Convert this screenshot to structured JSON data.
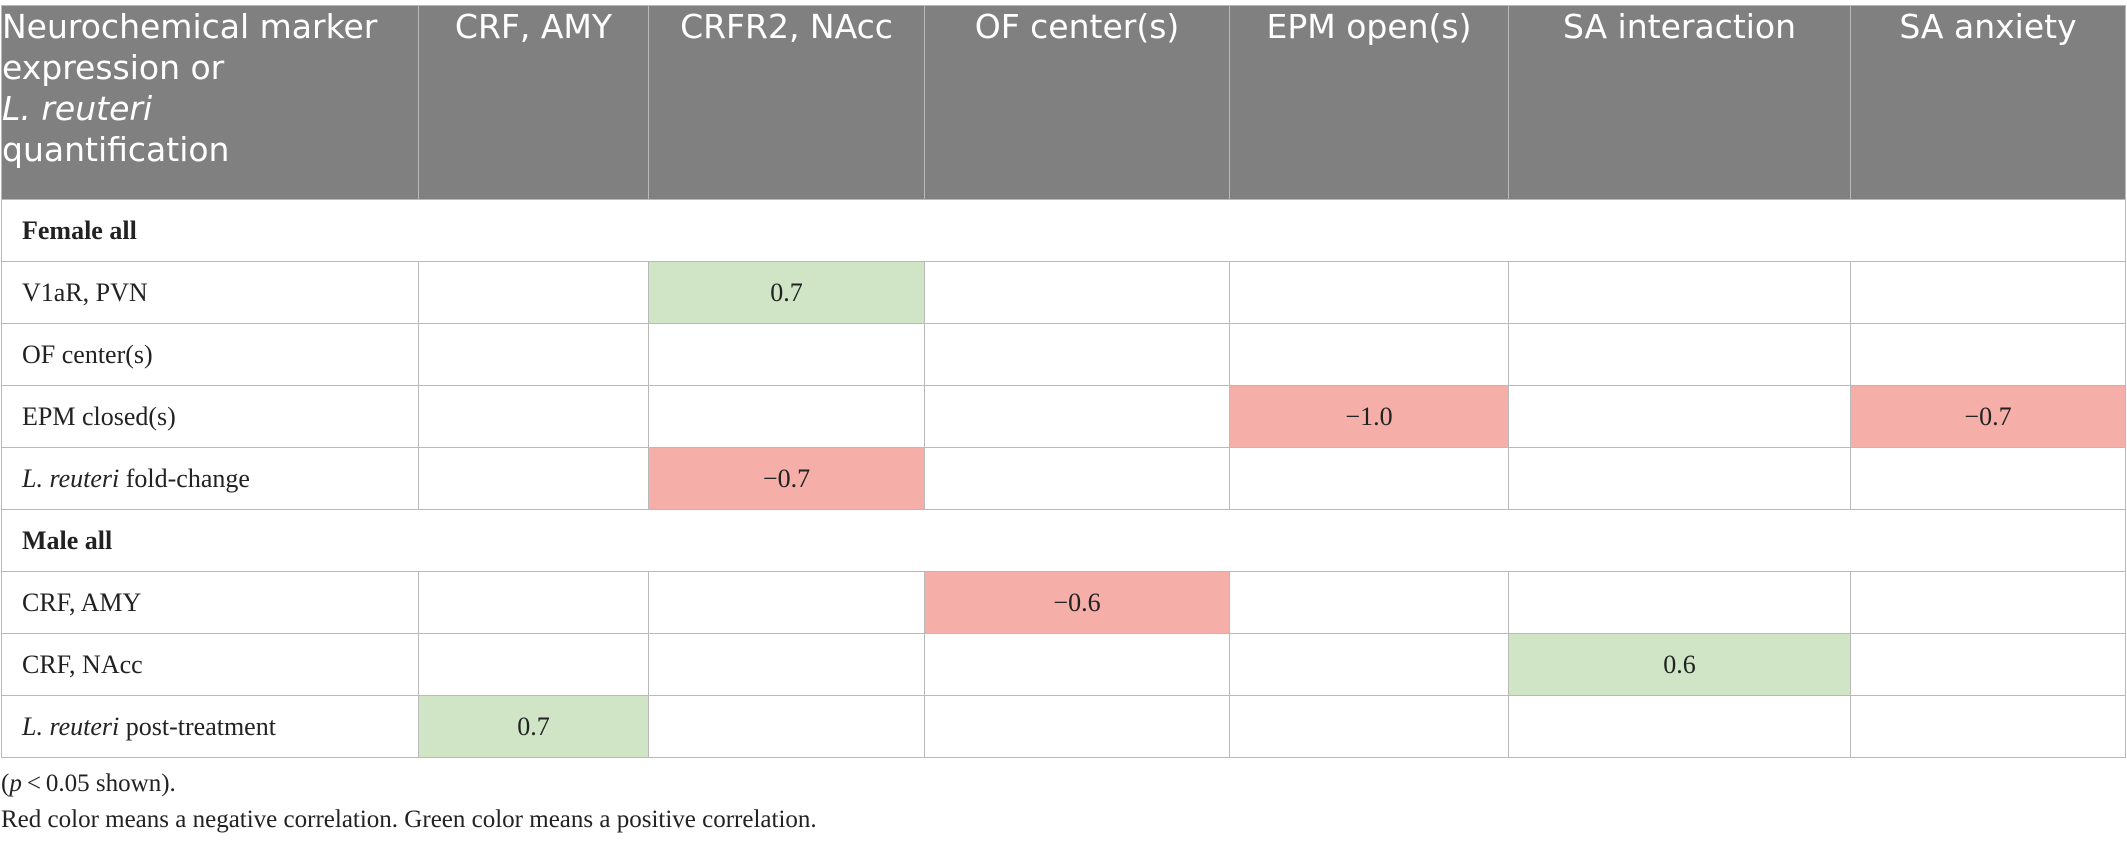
{
  "header": {
    "col0_line1": "Neurochemical marker expression or",
    "col0_italic": "L. reuteri",
    "col0_line3": "quantification",
    "columns": [
      "CRF, AMY",
      "CRFR2, NAcc",
      "OF center(s)",
      "EPM open(s)",
      "SA interaction",
      "SA anxiety"
    ]
  },
  "groups": [
    {
      "label": "Female all",
      "rows": [
        {
          "italic": "",
          "label": "V1aR, PVN",
          "cells": [
            "",
            "0.7",
            "",
            "",
            "",
            ""
          ]
        },
        {
          "italic": "",
          "label": "OF center(s)",
          "cells": [
            "",
            "",
            "",
            "",
            "",
            ""
          ]
        },
        {
          "italic": "",
          "label": "EPM closed(s)",
          "cells": [
            "",
            "",
            "",
            "−1.0",
            "",
            "−0.7"
          ]
        },
        {
          "italic": "L. reuteri",
          "label": " fold-change",
          "cells": [
            "",
            "−0.7",
            "",
            "",
            "",
            ""
          ]
        }
      ]
    },
    {
      "label": "Male all",
      "rows": [
        {
          "italic": "",
          "label": "CRF, AMY",
          "cells": [
            "",
            "",
            "−0.6",
            "",
            "",
            ""
          ]
        },
        {
          "italic": "",
          "label": "CRF, NAcc",
          "cells": [
            "",
            "",
            "",
            "",
            "0.6",
            ""
          ]
        },
        {
          "italic": "L. reuteri",
          "label": " post-treatment",
          "cells": [
            "0.7",
            "",
            "",
            "",
            "",
            ""
          ]
        }
      ]
    }
  ],
  "notes": {
    "p_open": "(",
    "p_symbol": "p",
    "p_rest": " < 0.05 shown).",
    "legend": "Red color means a negative correlation. Green color means a positive correlation."
  },
  "colors": {
    "header_bg": "#808080",
    "positive": "#cfe5c6",
    "negative": "#f5aea8",
    "grid": "#b9b9b9"
  }
}
